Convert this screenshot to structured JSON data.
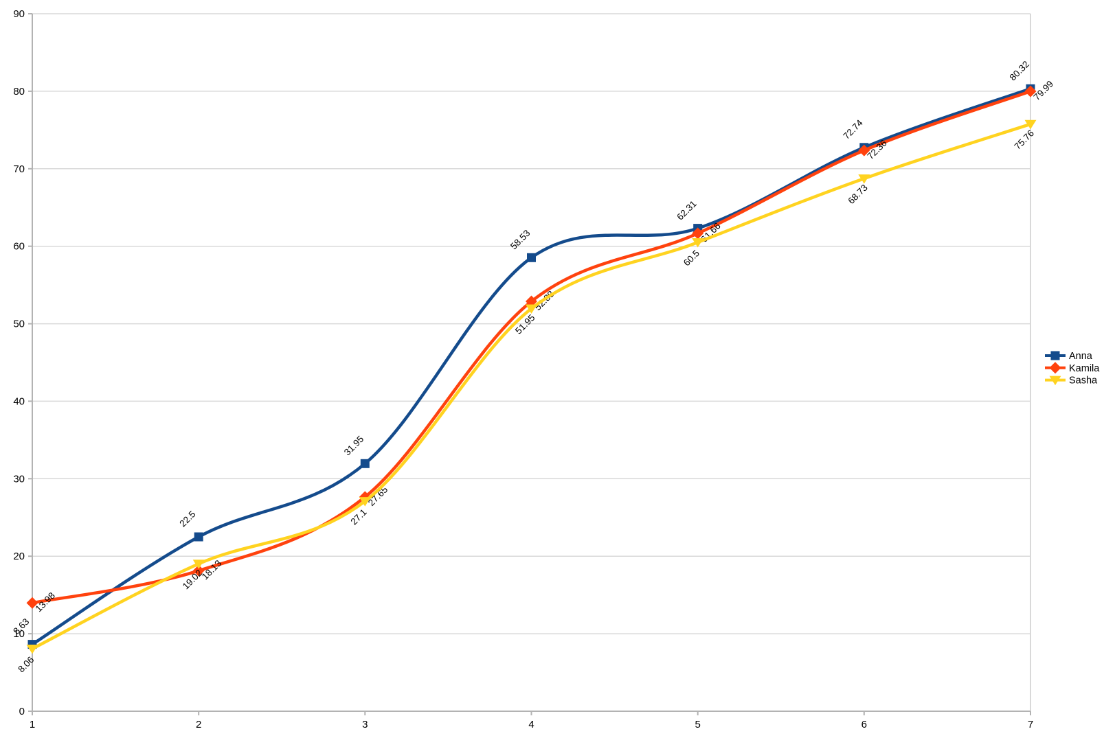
{
  "chart_data": {
    "type": "line",
    "smooth": true,
    "title": "",
    "xlabel": "",
    "ylabel": "",
    "x": [
      1,
      2,
      3,
      4,
      5,
      6,
      7
    ],
    "x_tick_labels": [
      "1",
      "2",
      "3",
      "4",
      "5",
      "6",
      "7"
    ],
    "y_tick_labels": [
      "0",
      "10",
      "20",
      "30",
      "40",
      "50",
      "60",
      "70",
      "80",
      "90"
    ],
    "xlim": [
      1,
      7
    ],
    "ylim": [
      0,
      90
    ],
    "y_major_step": 10,
    "grid": "horizontal-major-on",
    "legend_position": "right",
    "data_label_rotation_deg": 45,
    "series": [
      {
        "name": "Anna",
        "marker": "square",
        "color": "#144B8C",
        "values": [
          8.63,
          22.5,
          31.95,
          58.53,
          62.31,
          72.74,
          80.32
        ],
        "labels": [
          "8.63",
          "22.5",
          "31.95",
          "58.53",
          "62.31",
          "72.74",
          "80.32"
        ]
      },
      {
        "name": "Kamila",
        "marker": "diamond",
        "color": "#FF420E",
        "values": [
          13.98,
          18.13,
          27.65,
          52.88,
          61.66,
          72.36,
          79.99
        ],
        "labels": [
          "13.98",
          "18.13",
          "27.65",
          "52.88",
          "61.66",
          "72.36",
          "79.99"
        ]
      },
      {
        "name": "Sasha",
        "marker": "triangle-down",
        "color": "#FFD320",
        "values": [
          8.06,
          19.02,
          27.1,
          51.95,
          60.5,
          68.73,
          75.76
        ],
        "labels": [
          "8.06",
          "19.02",
          "27.1",
          "51.95",
          "60.5",
          "68.73",
          "75.76"
        ]
      }
    ],
    "colors": {
      "grid": "#d9d9d9",
      "axis": "#b3b3b3",
      "text": "#000000",
      "background": "#ffffff"
    }
  }
}
